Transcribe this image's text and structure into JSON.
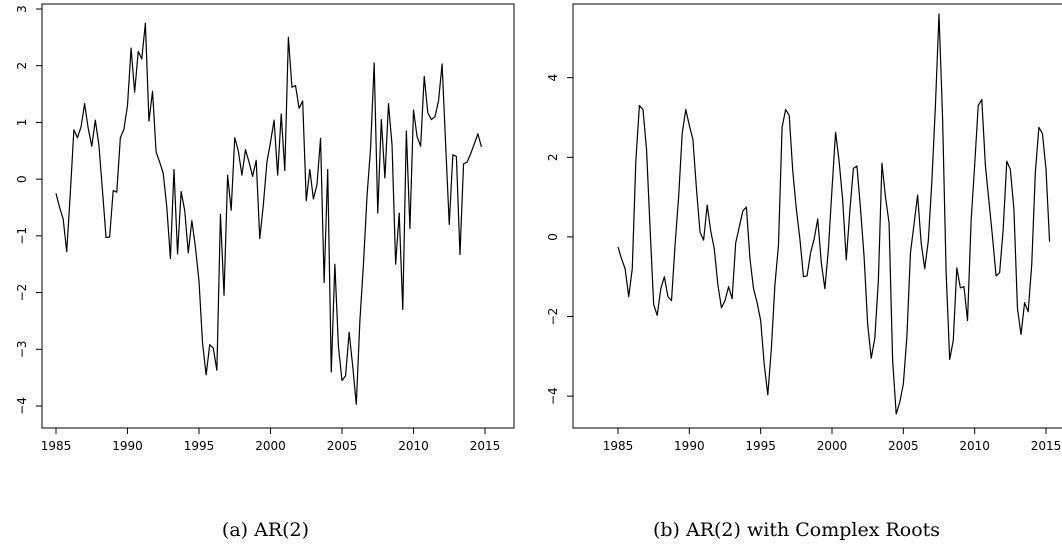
{
  "chart_data": [
    {
      "type": "line",
      "caption": "(a) AR(2)",
      "xlim": [
        1985,
        2015
      ],
      "ylim": [
        -4.3,
        3.0
      ],
      "x_ticks": [
        1985,
        1990,
        1995,
        2000,
        2005,
        2010,
        2015
      ],
      "y_ticks": [
        -4,
        -3,
        -2,
        -1,
        0,
        1,
        2,
        3
      ],
      "x_start": 1985.0,
      "x_step": 0.25,
      "series": [
        {
          "values": [
            -0.25,
            -0.5,
            -0.7,
            -1.28,
            -0.25,
            0.87,
            0.73,
            0.92,
            1.33,
            0.9,
            0.58,
            1.04,
            0.6,
            -0.2,
            -1.03,
            -1.02,
            -0.2,
            -0.23,
            0.73,
            0.88,
            1.3,
            2.31,
            1.53,
            2.25,
            2.12,
            2.75,
            1.02,
            1.55,
            0.48,
            0.3,
            0.1,
            -0.5,
            -1.4,
            0.17,
            -1.32,
            -0.22,
            -0.55,
            -1.3,
            -0.73,
            -1.2,
            -1.8,
            -2.9,
            -3.45,
            -2.92,
            -2.98,
            -3.37,
            -0.62,
            -2.05,
            0.07,
            -0.55,
            0.73,
            0.5,
            0.07,
            0.52,
            0.3,
            0.05,
            0.33,
            -1.05,
            -0.45,
            0.3,
            0.65,
            1.04,
            0.07,
            1.15,
            0.15,
            2.5,
            1.62,
            1.65,
            1.25,
            1.38,
            -0.38,
            0.17,
            -0.35,
            -0.1,
            0.72,
            -1.82,
            0.17,
            -3.4,
            -1.5,
            -2.95,
            -3.55,
            -3.47,
            -2.7,
            -3.3,
            -3.97,
            -2.5,
            -1.5,
            -0.3,
            0.55,
            2.05,
            -0.6,
            1.05,
            0.02,
            1.33,
            0.6,
            -1.5,
            -0.6,
            -2.3,
            0.85,
            -0.87,
            1.22,
            0.75,
            0.58,
            1.81,
            1.17,
            1.05,
            1.1,
            1.38,
            2.03,
            0.6,
            -0.8,
            0.43,
            0.4,
            -1.33,
            0.27,
            0.3,
            0.45,
            0.62,
            0.8,
            0.57
          ]
        }
      ]
    },
    {
      "type": "line",
      "caption": "(b) AR(2) with Complex Roots",
      "xlim": [
        1985,
        2015
      ],
      "ylim": [
        -4.7,
        5.7
      ],
      "x_ticks": [
        1985,
        1990,
        1995,
        2000,
        2005,
        2010,
        2015
      ],
      "y_ticks": [
        -4,
        -2,
        0,
        2,
        4
      ],
      "x_start": 1985.0,
      "x_step": 0.25,
      "series": [
        {
          "values": [
            -0.25,
            -0.55,
            -0.8,
            -1.5,
            -0.8,
            1.9,
            3.3,
            3.2,
            2.2,
            0.2,
            -1.7,
            -1.97,
            -1.3,
            -1.0,
            -1.5,
            -1.6,
            -0.2,
            1.0,
            2.6,
            3.2,
            2.8,
            2.45,
            1.2,
            0.12,
            -0.08,
            0.8,
            0.15,
            -0.3,
            -1.2,
            -1.78,
            -1.6,
            -1.25,
            -1.55,
            -0.15,
            0.25,
            0.65,
            0.75,
            -0.55,
            -1.3,
            -1.65,
            -2.1,
            -3.2,
            -3.97,
            -2.8,
            -1.2,
            -0.2,
            2.75,
            3.2,
            3.05,
            1.65,
            0.7,
            -0.05,
            -1.0,
            -0.98,
            -0.4,
            -0.05,
            0.45,
            -0.65,
            -1.3,
            -0.3,
            1.2,
            2.63,
            1.9,
            0.92,
            -0.58,
            0.65,
            1.72,
            1.78,
            0.7,
            -0.5,
            -2.2,
            -3.05,
            -2.55,
            -1.1,
            1.85,
            1.0,
            0.35,
            -3.1,
            -4.45,
            -4.15,
            -3.7,
            -2.5,
            -0.4,
            0.32,
            1.05,
            -0.15,
            -0.8,
            -0.1,
            1.4,
            3.3,
            5.6,
            3.0,
            -0.9,
            -3.08,
            -2.6,
            -0.78,
            -1.28,
            -1.25,
            -2.1,
            0.4,
            1.8,
            3.3,
            3.45,
            1.8,
            0.9,
            0.0,
            -0.98,
            -0.9,
            0.2,
            1.9,
            1.7,
            0.7,
            -1.8,
            -2.45,
            -1.65,
            -1.88,
            -0.7,
            1.6,
            2.75,
            2.6,
            1.7,
            -0.12
          ]
        }
      ]
    }
  ]
}
